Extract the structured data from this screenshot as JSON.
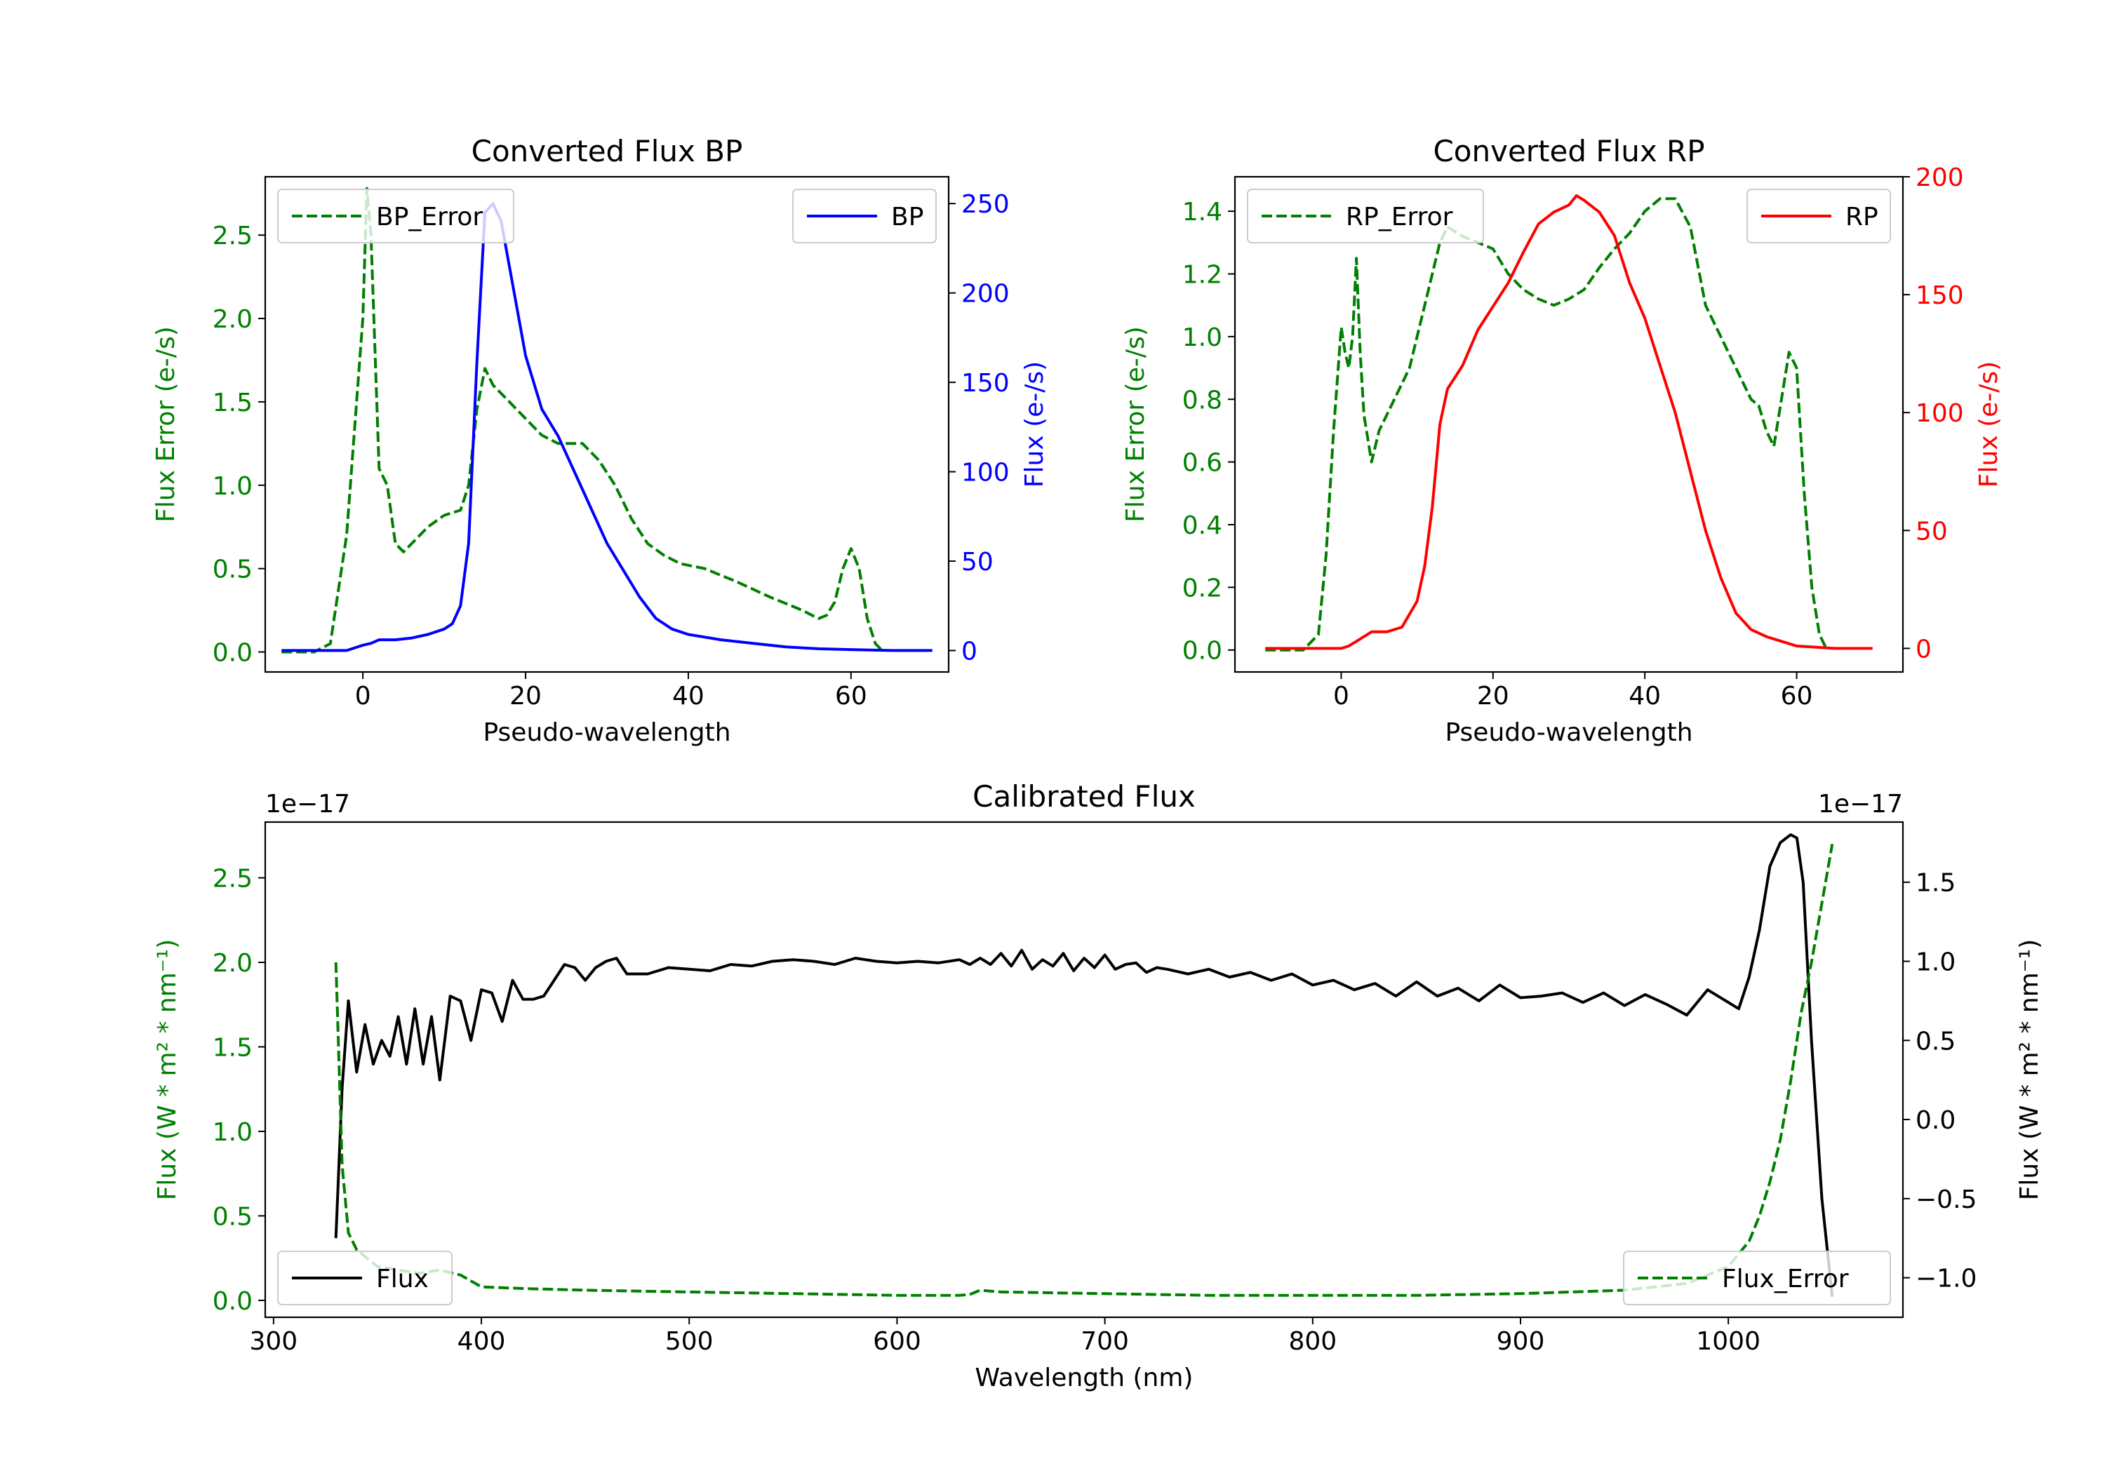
{
  "colors": {
    "green": "#008000",
    "blue": "#0000ff",
    "red": "#ff0000",
    "black": "#000000"
  },
  "chart_data": [
    {
      "type": "line",
      "title": "Converted Flux BP",
      "xlabel": "Pseudo-wavelength",
      "ylabel_left": "Flux Error (e-/s)",
      "ylabel_right": "Flux (e-/s)",
      "xlim": [
        -12,
        72
      ],
      "ylim_left": [
        -0.12,
        2.85
      ],
      "ylim_right": [
        -12,
        265
      ],
      "xticks": [
        0,
        20,
        40,
        60
      ],
      "yticks_left": [
        0.0,
        0.5,
        1.0,
        1.5,
        2.0,
        2.5
      ],
      "yticks_right": [
        0,
        50,
        100,
        150,
        200,
        250
      ],
      "ytick_labels_left": [
        "0.0",
        "0.5",
        "1.0",
        "1.5",
        "2.0",
        "2.5"
      ],
      "ytick_labels_right": [
        "0",
        "50",
        "100",
        "150",
        "200",
        "250"
      ],
      "legend_left": {
        "label": "BP_Error",
        "placement": "top-left"
      },
      "legend_right": {
        "label": "BP",
        "placement": "top-right"
      },
      "series": [
        {
          "name": "BP_Error",
          "axis": "left",
          "style": "dashed",
          "color": "#008000",
          "x": [
            -10,
            -6,
            -4,
            -2,
            0,
            0.5,
            1,
            2,
            3,
            4,
            5,
            6,
            8,
            10,
            12,
            13,
            14,
            15,
            16,
            18,
            20,
            22,
            24,
            27,
            29,
            31,
            33,
            35,
            37,
            39,
            42,
            46,
            50,
            54,
            56,
            57,
            58,
            59,
            60,
            61,
            62,
            63,
            64
          ],
          "y": [
            0,
            0,
            0.05,
            0.7,
            2.0,
            2.78,
            2.5,
            1.1,
            1.0,
            0.65,
            0.6,
            0.65,
            0.75,
            0.82,
            0.85,
            1.0,
            1.45,
            1.7,
            1.6,
            1.5,
            1.4,
            1.3,
            1.25,
            1.25,
            1.15,
            1.0,
            0.8,
            0.65,
            0.58,
            0.53,
            0.5,
            0.42,
            0.33,
            0.25,
            0.2,
            0.22,
            0.3,
            0.5,
            0.62,
            0.5,
            0.2,
            0.05,
            0
          ]
        },
        {
          "name": "BP",
          "axis": "right",
          "style": "solid",
          "color": "#0000ff",
          "x": [
            -10,
            -5,
            -2,
            0,
            1,
            2,
            4,
            6,
            8,
            10,
            11,
            12,
            13,
            14,
            15,
            16,
            17,
            18,
            19,
            20,
            21,
            22,
            24,
            26,
            28,
            30,
            32,
            34,
            36,
            38,
            40,
            44,
            48,
            52,
            56,
            60,
            65,
            70
          ],
          "y": [
            0,
            0,
            0,
            3,
            4,
            6,
            6,
            7,
            9,
            12,
            15,
            25,
            60,
            160,
            245,
            250,
            240,
            215,
            190,
            165,
            150,
            135,
            120,
            100,
            80,
            60,
            45,
            30,
            18,
            12,
            9,
            6,
            4,
            2,
            1,
            0.5,
            0,
            0
          ]
        }
      ]
    },
    {
      "type": "line",
      "title": "Converted Flux RP",
      "xlabel": "Pseudo-wavelength",
      "ylabel_left": "Flux Error (e-/s)",
      "ylabel_right": "Flux (e-/s)",
      "xlim": [
        -14,
        74
      ],
      "ylim_left": [
        -0.07,
        1.51
      ],
      "ylim_right": [
        -10,
        200
      ],
      "xticks": [
        0,
        20,
        40,
        60
      ],
      "yticks_left": [
        0.0,
        0.2,
        0.4,
        0.6,
        0.8,
        1.0,
        1.2,
        1.4
      ],
      "yticks_right": [
        0,
        50,
        100,
        150,
        200
      ],
      "ytick_labels_left": [
        "0.0",
        "0.2",
        "0.4",
        "0.6",
        "0.8",
        "1.0",
        "1.2",
        "1.4"
      ],
      "ytick_labels_right": [
        "0",
        "50",
        "100",
        "150",
        "200"
      ],
      "legend_left": {
        "label": "RP_Error",
        "placement": "top-left"
      },
      "legend_right": {
        "label": "RP",
        "placement": "top-right"
      },
      "series": [
        {
          "name": "RP_Error",
          "axis": "left",
          "style": "dashed",
          "color": "#008000",
          "x": [
            -10,
            -5,
            -3,
            -2,
            -1,
            0,
            0.5,
            1,
            1.5,
            2,
            2.5,
            3,
            4,
            5,
            6,
            7,
            8,
            9,
            10,
            11,
            12,
            13,
            14,
            16,
            18,
            20,
            22,
            24,
            26,
            28,
            30,
            32,
            34,
            36,
            38,
            40,
            42,
            44,
            46,
            48,
            50,
            52,
            54,
            55,
            56,
            57,
            58,
            59,
            60,
            61,
            62,
            63,
            64
          ],
          "y": [
            0,
            0,
            0.05,
            0.3,
            0.7,
            1.03,
            0.95,
            0.9,
            1.0,
            1.25,
            0.95,
            0.75,
            0.6,
            0.7,
            0.75,
            0.8,
            0.85,
            0.9,
            1.0,
            1.1,
            1.2,
            1.3,
            1.35,
            1.32,
            1.3,
            1.28,
            1.2,
            1.15,
            1.12,
            1.1,
            1.12,
            1.15,
            1.22,
            1.28,
            1.33,
            1.4,
            1.44,
            1.44,
            1.35,
            1.1,
            1.0,
            0.9,
            0.8,
            0.78,
            0.7,
            0.65,
            0.8,
            0.95,
            0.9,
            0.5,
            0.2,
            0.05,
            0
          ]
        },
        {
          "name": "RP",
          "axis": "right",
          "style": "solid",
          "color": "#ff0000",
          "x": [
            -10,
            -4,
            0,
            1,
            2,
            4,
            6,
            8,
            10,
            11,
            12,
            13,
            14,
            16,
            18,
            20,
            22,
            24,
            26,
            28,
            30,
            31,
            32,
            34,
            36,
            37,
            38,
            40,
            42,
            44,
            46,
            48,
            50,
            52,
            54,
            56,
            58,
            60,
            65,
            70
          ],
          "y": [
            0,
            0,
            0,
            1,
            3,
            7,
            7,
            9,
            20,
            35,
            60,
            95,
            110,
            120,
            135,
            145,
            155,
            168,
            180,
            185,
            188,
            192,
            190,
            185,
            175,
            165,
            155,
            140,
            120,
            100,
            75,
            50,
            30,
            15,
            8,
            5,
            3,
            1,
            0,
            0
          ]
        }
      ]
    },
    {
      "type": "line",
      "title": "Calibrated Flux",
      "xlabel": "Wavelength (nm)",
      "ylabel_left": "Flux (W * m² * nm⁻¹)",
      "ylabel_right": "Flux (W * m² * nm⁻¹)",
      "offset_left": "1e−17",
      "offset_right": "1e−17",
      "xlim": [
        296,
        1084
      ],
      "ylim_left": [
        -0.1,
        2.83
      ],
      "ylim_right": [
        -1.25,
        1.88
      ],
      "xticks": [
        300,
        400,
        500,
        600,
        700,
        800,
        900,
        1000
      ],
      "yticks_left": [
        0.0,
        0.5,
        1.0,
        1.5,
        2.0,
        2.5
      ],
      "yticks_right": [
        -1.0,
        -0.5,
        0.0,
        0.5,
        1.0,
        1.5
      ],
      "ytick_labels_left": [
        "0.0",
        "0.5",
        "1.0",
        "1.5",
        "2.0",
        "2.5"
      ],
      "ytick_labels_right": [
        "−1.0",
        "−0.5",
        "0.0",
        "0.5",
        "1.0",
        "1.5"
      ],
      "legend_left": {
        "label": "Flux",
        "placement": "bottom-left"
      },
      "legend_right": {
        "label": "Flux_Error",
        "placement": "bottom-right"
      },
      "series": [
        {
          "name": "Flux",
          "axis": "right",
          "style": "solid",
          "color": "#000000",
          "x": [
            330,
            333,
            336,
            340,
            344,
            348,
            352,
            356,
            360,
            364,
            368,
            372,
            376,
            380,
            385,
            390,
            395,
            400,
            405,
            410,
            415,
            420,
            425,
            430,
            435,
            440,
            445,
            450,
            455,
            460,
            465,
            470,
            480,
            490,
            500,
            510,
            520,
            530,
            540,
            550,
            560,
            570,
            580,
            590,
            600,
            610,
            620,
            630,
            635,
            640,
            645,
            650,
            655,
            660,
            665,
            670,
            675,
            680,
            685,
            690,
            695,
            700,
            705,
            710,
            715,
            720,
            725,
            730,
            740,
            750,
            760,
            770,
            780,
            790,
            800,
            810,
            820,
            830,
            840,
            850,
            860,
            870,
            880,
            890,
            900,
            910,
            920,
            930,
            940,
            950,
            960,
            970,
            980,
            990,
            1000,
            1005,
            1010,
            1015,
            1020,
            1025,
            1030,
            1033,
            1036,
            1040,
            1045,
            1050
          ],
          "y": [
            -0.75,
            0.2,
            0.75,
            0.3,
            0.6,
            0.35,
            0.5,
            0.4,
            0.65,
            0.35,
            0.7,
            0.35,
            0.65,
            0.25,
            0.78,
            0.75,
            0.5,
            0.82,
            0.8,
            0.62,
            0.88,
            0.76,
            0.76,
            0.78,
            0.88,
            0.98,
            0.96,
            0.88,
            0.96,
            1.0,
            1.02,
            0.92,
            0.92,
            0.96,
            0.95,
            0.94,
            0.98,
            0.97,
            1.0,
            1.01,
            1.0,
            0.98,
            1.02,
            1.0,
            0.99,
            1.0,
            0.99,
            1.01,
            0.98,
            1.02,
            0.98,
            1.05,
            0.97,
            1.07,
            0.95,
            1.01,
            0.97,
            1.05,
            0.94,
            1.02,
            0.96,
            1.04,
            0.95,
            0.98,
            0.99,
            0.93,
            0.96,
            0.95,
            0.92,
            0.95,
            0.9,
            0.93,
            0.88,
            0.92,
            0.85,
            0.88,
            0.82,
            0.86,
            0.78,
            0.87,
            0.78,
            0.83,
            0.75,
            0.85,
            0.77,
            0.78,
            0.8,
            0.74,
            0.8,
            0.72,
            0.79,
            0.73,
            0.66,
            0.82,
            0.74,
            0.7,
            0.9,
            1.2,
            1.6,
            1.75,
            1.8,
            1.78,
            1.5,
            0.5,
            -0.5,
            -1.12
          ]
        },
        {
          "name": "Flux_Error",
          "axis": "left",
          "style": "dashed",
          "color": "#008000",
          "x": [
            330,
            331,
            333,
            336,
            340,
            345,
            350,
            360,
            370,
            380,
            390,
            400,
            420,
            450,
            500,
            550,
            600,
            630,
            635,
            640,
            650,
            700,
            750,
            800,
            850,
            900,
            950,
            980,
            1000,
            1010,
            1015,
            1020,
            1025,
            1030,
            1035,
            1040,
            1045,
            1050
          ],
          "y": [
            2.0,
            1.6,
            0.8,
            0.4,
            0.3,
            0.25,
            0.2,
            0.18,
            0.16,
            0.18,
            0.15,
            0.08,
            0.07,
            0.06,
            0.05,
            0.04,
            0.03,
            0.03,
            0.035,
            0.06,
            0.05,
            0.04,
            0.03,
            0.03,
            0.03,
            0.04,
            0.06,
            0.1,
            0.2,
            0.35,
            0.5,
            0.7,
            0.95,
            1.3,
            1.7,
            2.0,
            2.35,
            2.7
          ]
        }
      ]
    }
  ]
}
